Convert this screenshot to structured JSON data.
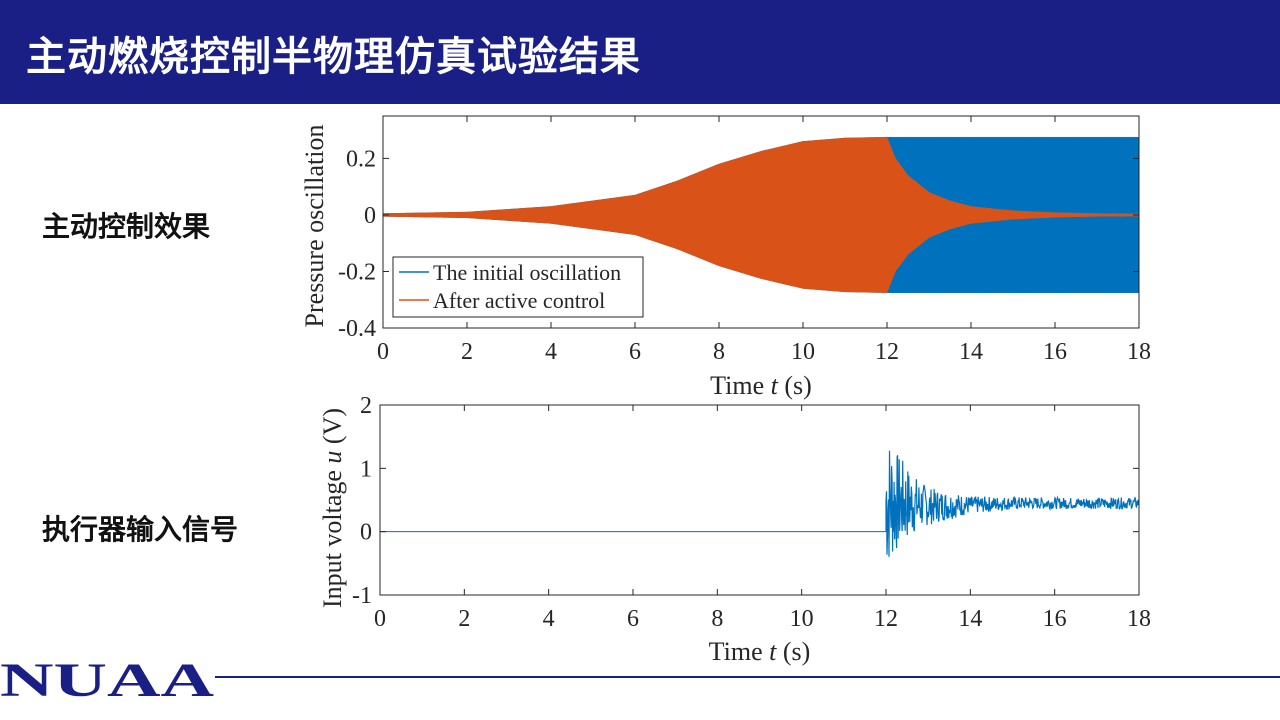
{
  "header": {
    "title": "主动燃烧控制半物理仿真试验结果"
  },
  "labels": {
    "control_effect": "主动控制效果",
    "actuator_input": "执行器输入信号"
  },
  "logo": {
    "text": "NUAA"
  },
  "colors": {
    "header_bg": "#1a1f86",
    "series_blue": "#0072bd",
    "series_orange": "#d95319"
  },
  "chart_data": [
    {
      "type": "line",
      "ylabel": "Pressure oscillation",
      "xlabel_prefix": "Time ",
      "xlabel_var": "t",
      "xlabel_suffix": " (s)",
      "xlim": [
        0,
        18
      ],
      "ylim": [
        -0.4,
        0.35
      ],
      "x_ticks": [
        "0",
        "2",
        "4",
        "6",
        "8",
        "10",
        "12",
        "14",
        "16",
        "18"
      ],
      "y_ticks": [
        "0.2",
        "0",
        "-0.2",
        "-0.4"
      ],
      "y_tick_values": [
        0.2,
        0,
        -0.2,
        -0.4
      ],
      "legend": {
        "location": "bottom-left"
      },
      "series": [
        {
          "name": "The initial oscillation",
          "color": "#0072bd",
          "envelope": {
            "x": [
              0,
              2,
              4,
              6,
              7,
              8,
              9,
              10,
              11,
              12,
              18
            ],
            "amplitude": [
              0.005,
              0.01,
              0.03,
              0.07,
              0.12,
              0.18,
              0.225,
              0.26,
              0.272,
              0.275,
              0.275
            ]
          }
        },
        {
          "name": "After active control",
          "color": "#d95319",
          "envelope": {
            "x": [
              0,
              2,
              4,
              6,
              7,
              8,
              9,
              10,
              11,
              12,
              12.2,
              12.5,
              13,
              13.5,
              14,
              15,
              16,
              17,
              18
            ],
            "amplitude": [
              0.005,
              0.01,
              0.03,
              0.07,
              0.12,
              0.18,
              0.225,
              0.26,
              0.272,
              0.275,
              0.2,
              0.14,
              0.08,
              0.05,
              0.03,
              0.015,
              0.008,
              0.005,
              0.004
            ]
          }
        }
      ]
    },
    {
      "type": "line",
      "ylabel_prefix": "Input voltage ",
      "ylabel_var": "u",
      "ylabel_suffix": " (V)",
      "xlabel_prefix": "Time ",
      "xlabel_var": "t",
      "xlabel_suffix": " (s)",
      "xlim": [
        0,
        18
      ],
      "ylim": [
        -1,
        2
      ],
      "x_ticks": [
        "0",
        "2",
        "4",
        "6",
        "8",
        "10",
        "12",
        "14",
        "16",
        "18"
      ],
      "y_ticks": [
        "2",
        "1",
        "0",
        "-1"
      ],
      "y_tick_values": [
        2,
        1,
        0,
        -1
      ],
      "series": [
        {
          "name": "",
          "color": "#0072bd",
          "baseline": 0,
          "start_x": 12,
          "mean": {
            "x": [
              12,
              12.5,
              13,
              14,
              15,
              16,
              17,
              18
            ],
            "value": [
              0.5,
              0.45,
              0.4,
              0.42,
              0.45,
              0.45,
              0.45,
              0.45
            ]
          },
          "half_range": {
            "x": [
              12,
              12.3,
              12.7,
              13,
              13.5,
              14,
              15,
              16,
              18
            ],
            "value": [
              1.15,
              0.75,
              0.45,
              0.3,
              0.22,
              0.14,
              0.1,
              0.09,
              0.09
            ]
          }
        }
      ]
    }
  ]
}
